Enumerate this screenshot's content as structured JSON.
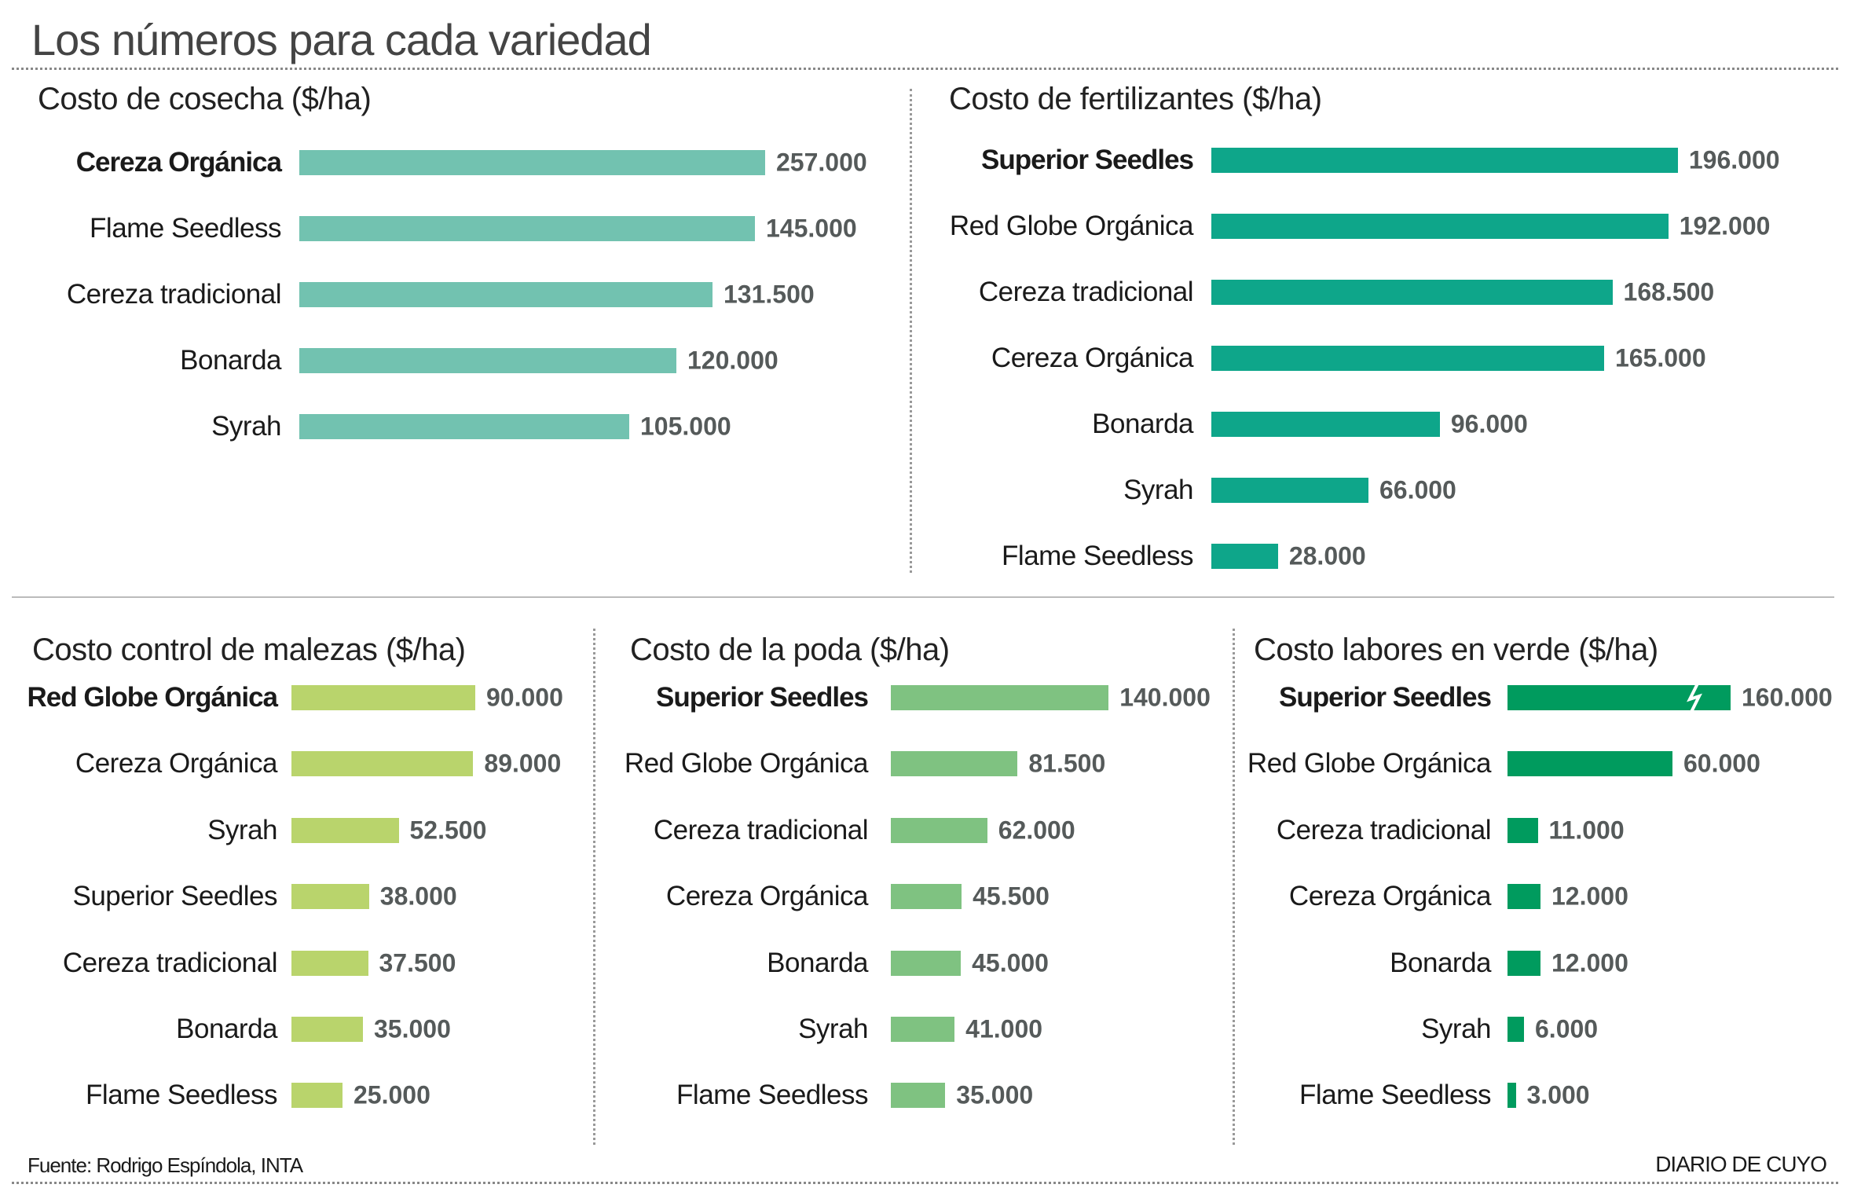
{
  "title": "Los números para cada variedad",
  "source": "Fuente: Rodrigo Espíndola, INTA",
  "brand": "DIARIO DE CUYO",
  "chart_data": [
    {
      "type": "bar",
      "orientation": "horizontal",
      "title": "Costo de cosecha ($/ha)",
      "color": "#72c2b0",
      "categories": [
        "Cereza Orgánica",
        "Flame Seedless",
        "Cereza tradicional",
        "Bonarda",
        "Syrah"
      ],
      "values": [
        257000,
        145000,
        131500,
        120000,
        105000
      ],
      "labels": [
        "257.000",
        "145.000",
        "131.500",
        "120.000",
        "105.000"
      ]
    },
    {
      "type": "bar",
      "orientation": "horizontal",
      "title": "Costo de fertilizantes ($/ha)",
      "color": "#0ea68a",
      "categories": [
        "Superior Seedles",
        "Red Globe Orgánica",
        "Cereza tradicional",
        "Cereza Orgánica",
        "Bonarda",
        "Syrah",
        "Flame Seedless"
      ],
      "values": [
        196000,
        192000,
        168500,
        165000,
        96000,
        66000,
        28000
      ],
      "labels": [
        "196.000",
        "192.000",
        "168.500",
        "165.000",
        "96.000",
        "66.000",
        "28.000"
      ]
    },
    {
      "type": "bar",
      "orientation": "horizontal",
      "title": "Costo control de malezas ($/ha)",
      "color": "#b9d46c",
      "categories": [
        "Red Globe Orgánica",
        "Cereza Orgánica",
        "Syrah",
        "Superior Seedles",
        "Cereza tradicional",
        "Bonarda",
        "Flame Seedless"
      ],
      "values": [
        90000,
        89000,
        52500,
        38000,
        37500,
        35000,
        25000
      ],
      "labels": [
        "90.000",
        "89.000",
        "52.500",
        "38.000",
        "37.500",
        "35.000",
        "25.000"
      ]
    },
    {
      "type": "bar",
      "orientation": "horizontal",
      "title": "Costo de la poda ($/ha)",
      "color": "#7fc281",
      "categories": [
        "Superior Seedles",
        "Red Globe Orgánica",
        "Cereza tradicional",
        "Cereza Orgánica",
        "Bonarda",
        "Syrah",
        "Flame Seedless"
      ],
      "values": [
        140000,
        81500,
        62000,
        45500,
        45000,
        41000,
        35000
      ],
      "labels": [
        "140.000",
        "81.500",
        "62.000",
        "45.500",
        "45.000",
        "41.000",
        "35.000"
      ]
    },
    {
      "type": "bar",
      "orientation": "horizontal",
      "title": "Costo labores en verde ($/ha)",
      "color": "#009b5e",
      "categories": [
        "Superior Seedles",
        "Red Globe Orgánica",
        "Cereza tradicional",
        "Cereza Orgánica",
        "Bonarda",
        "Syrah",
        "Flame Seedless"
      ],
      "values": [
        160000,
        60000,
        11000,
        12000,
        12000,
        6000,
        3000
      ],
      "labels": [
        "160.000",
        "60.000",
        "11.000",
        "12.000",
        "12.000",
        "6.000",
        "3.000"
      ],
      "broken_axis_categories": [
        "Superior Seedles"
      ]
    }
  ]
}
